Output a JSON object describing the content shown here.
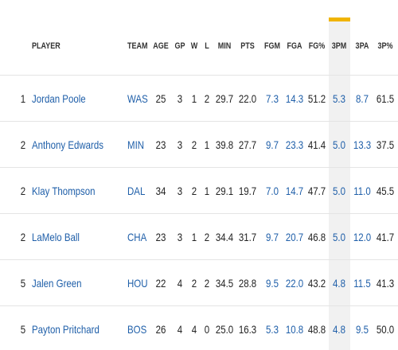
{
  "table": {
    "columns": [
      "PLAYER",
      "TEAM",
      "AGE",
      "GP",
      "W",
      "L",
      "MIN",
      "PTS",
      "FGM",
      "FGA",
      "FG%",
      "3PM",
      "3PA",
      "3P%"
    ],
    "rows": [
      {
        "rank": "1",
        "player": "Jordan Poole",
        "team": "WAS",
        "stats": [
          "25",
          "3",
          "1",
          "2",
          "29.7",
          "22.0",
          "7.3",
          "14.3",
          "51.2",
          "5.3",
          "8.7",
          "61.5"
        ]
      },
      {
        "rank": "2",
        "player": "Anthony Edwards",
        "team": "MIN",
        "stats": [
          "23",
          "3",
          "2",
          "1",
          "39.8",
          "27.7",
          "9.7",
          "23.3",
          "41.4",
          "5.0",
          "13.3",
          "37.5"
        ]
      },
      {
        "rank": "2",
        "player": "Klay Thompson",
        "team": "DAL",
        "stats": [
          "34",
          "3",
          "2",
          "1",
          "29.1",
          "19.7",
          "7.0",
          "14.7",
          "47.7",
          "5.0",
          "11.0",
          "45.5"
        ]
      },
      {
        "rank": "2",
        "player": "LaMelo Ball",
        "team": "CHA",
        "stats": [
          "23",
          "3",
          "1",
          "2",
          "34.4",
          "31.7",
          "9.7",
          "20.7",
          "46.8",
          "5.0",
          "12.0",
          "41.7"
        ]
      },
      {
        "rank": "5",
        "player": "Jalen Green",
        "team": "HOU",
        "stats": [
          "22",
          "4",
          "2",
          "2",
          "34.5",
          "28.8",
          "9.5",
          "22.0",
          "43.2",
          "4.8",
          "11.5",
          "41.3"
        ]
      },
      {
        "rank": "5",
        "player": "Payton Pritchard",
        "team": "BOS",
        "stats": [
          "26",
          "4",
          "4",
          "0",
          "25.0",
          "16.3",
          "5.3",
          "10.8",
          "48.8",
          "4.8",
          "9.5",
          "50.0"
        ]
      }
    ]
  }
}
